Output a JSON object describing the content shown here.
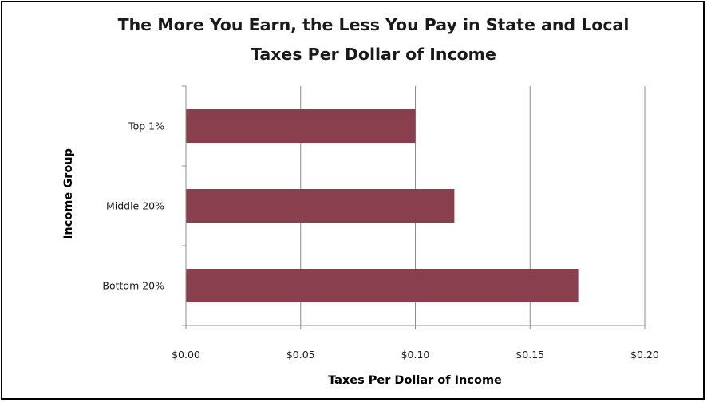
{
  "chart_data": {
    "type": "bar",
    "orientation": "horizontal",
    "title": "The More You Earn, the Less You Pay in State and Local Taxes Per Dollar of Income",
    "title_lines": [
      "The More You Earn, the Less You Pay in State and Local",
      "Taxes Per Dollar of Income"
    ],
    "xlabel": "Taxes Per Dollar of Income",
    "ylabel": "Income Group",
    "categories": [
      "Top 1%",
      "Middle 20%",
      "Bottom 20%"
    ],
    "values": [
      0.1,
      0.117,
      0.171
    ],
    "xlim": [
      0,
      0.2
    ],
    "xticks": [
      0,
      0.05,
      0.1,
      0.15,
      0.2
    ],
    "xtick_labels": [
      "$0.00",
      "$0.05",
      "$0.10",
      "$0.15",
      "$0.20"
    ],
    "grid": "vertical",
    "legend": "none",
    "colors": {
      "bar": "#893f4e",
      "gridline": "#8c8c8c",
      "axis": "#8c8c8c"
    }
  }
}
